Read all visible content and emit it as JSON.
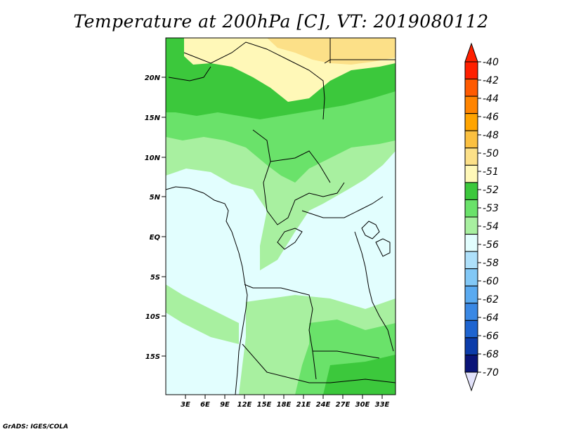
{
  "title": "Temperature at 200hPa [C], VT: 2019080112",
  "credit": "GrADS: IGES/COLA",
  "map": {
    "lat_labels": [
      "20N",
      "15N",
      "10N",
      "5N",
      "EQ",
      "5S",
      "10S",
      "15S"
    ],
    "lon_labels": [
      "3E",
      "6E",
      "9E",
      "12E",
      "15E",
      "18E",
      "21E",
      "24E",
      "27E",
      "30E",
      "33E"
    ]
  },
  "colorbar": {
    "labels": [
      "-40",
      "-42",
      "-44",
      "-46",
      "-48",
      "-50",
      "-51",
      "-52",
      "-53",
      "-54",
      "-56",
      "-58",
      "-60",
      "-62",
      "-64",
      "-66",
      "-68",
      "-70"
    ],
    "colors": [
      "#ff2000",
      "#ff5a00",
      "#ff8400",
      "#ffa400",
      "#fbc040",
      "#fce088",
      "#fff8b8",
      "#3cc83c",
      "#6ae26a",
      "#a8f0a0",
      "#e2fefe",
      "#aee0fa",
      "#82c8f6",
      "#5aaaf0",
      "#3a88e4",
      "#1e64d0",
      "#0c3caa",
      "#0a1478"
    ],
    "top_arrow_color": "#ff2000",
    "bottom_arrow_color": "#e2e2fa"
  }
}
